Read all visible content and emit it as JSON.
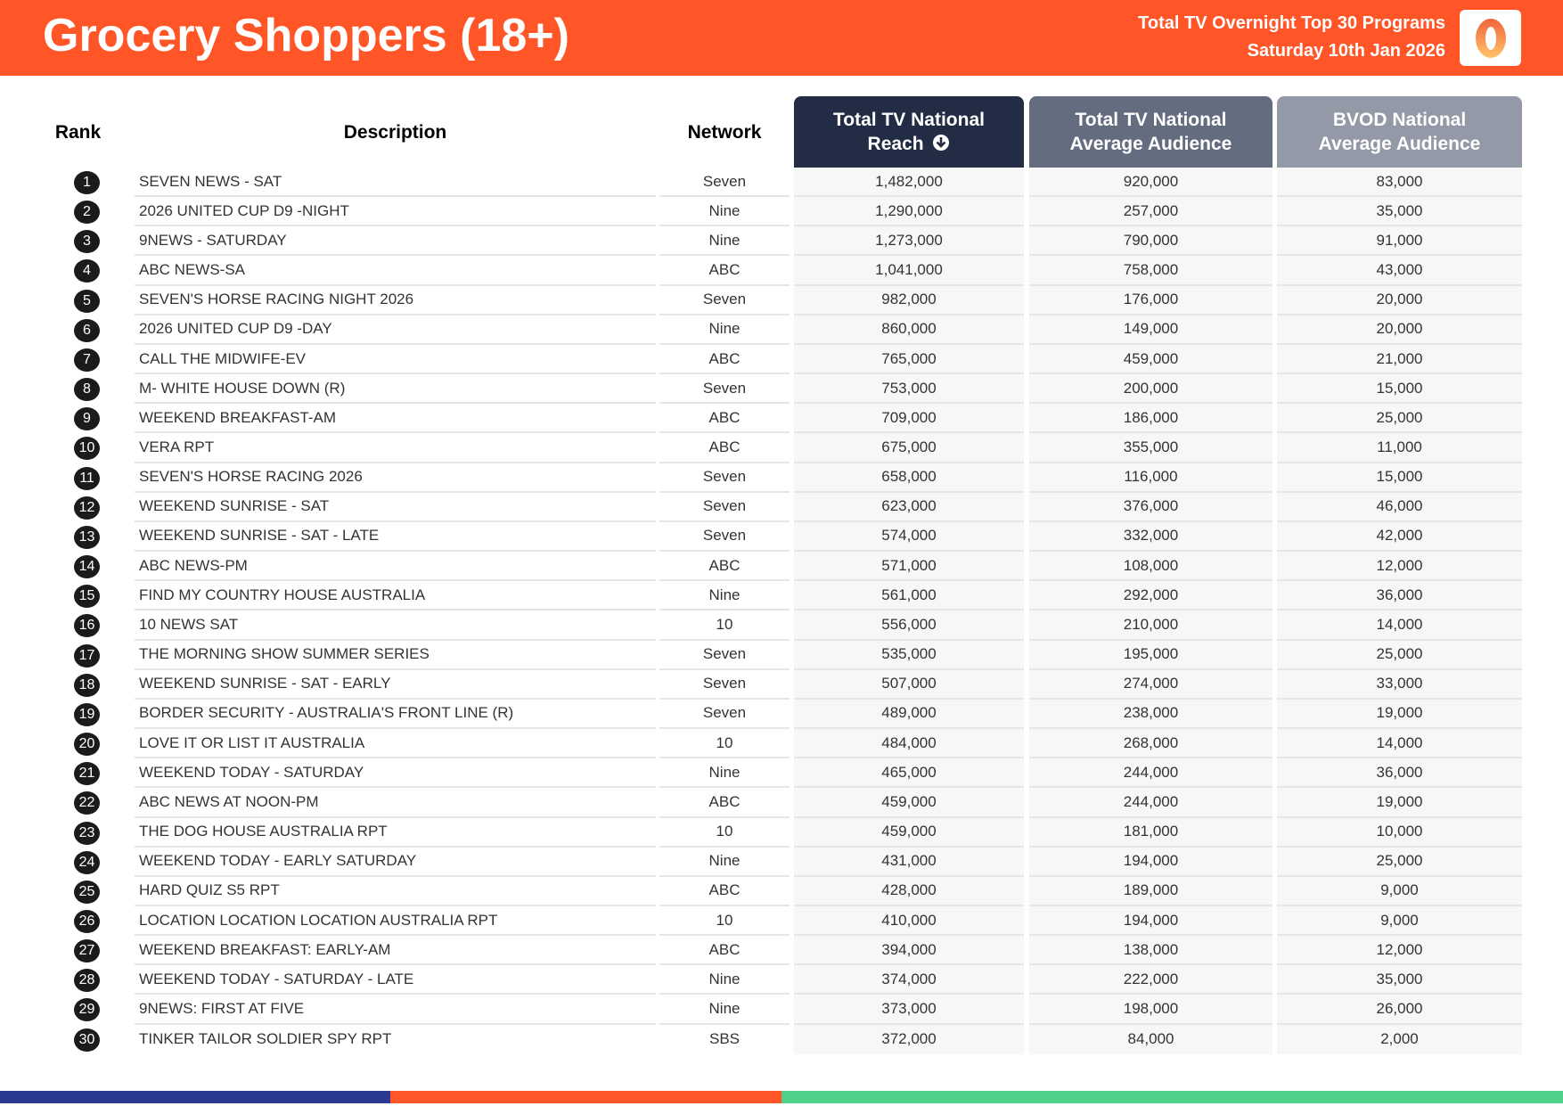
{
  "header": {
    "title": "Grocery Shoppers (18+)",
    "subtitle": "Total TV Overnight Top 30 Programs",
    "date": "Saturday 10th Jan 2026",
    "logo_text": "0"
  },
  "columns": {
    "rank": "Rank",
    "description": "Description",
    "network": "Network",
    "reach_line1": "Total TV National",
    "reach_line2": "Reach",
    "avg_line1": "Total TV National",
    "avg_line2": "Average Audience",
    "bvod_line1": "BVOD National",
    "bvod_line2": "Average Audience",
    "sort_icon": "arrow-down-circle-icon"
  },
  "colors": {
    "header": "#ff5527",
    "reach_header": "#222d45",
    "avg_header": "#646d80",
    "bvod_header": "#9399a6",
    "bar_blue": "#2b3990",
    "bar_orange": "#ff5527",
    "bar_green": "#4fd18b"
  },
  "rows": [
    {
      "rank": "1",
      "description": "SEVEN NEWS - SAT",
      "network": "Seven",
      "reach": "1,482,000",
      "avg": "920,000",
      "bvod": "83,000"
    },
    {
      "rank": "2",
      "description": "2026 UNITED CUP D9 -NIGHT",
      "network": "Nine",
      "reach": "1,290,000",
      "avg": "257,000",
      "bvod": "35,000"
    },
    {
      "rank": "3",
      "description": "9NEWS - SATURDAY",
      "network": "Nine",
      "reach": "1,273,000",
      "avg": "790,000",
      "bvod": "91,000"
    },
    {
      "rank": "4",
      "description": "ABC NEWS-SA",
      "network": "ABC",
      "reach": "1,041,000",
      "avg": "758,000",
      "bvod": "43,000"
    },
    {
      "rank": "5",
      "description": "SEVEN'S HORSE RACING NIGHT 2026",
      "network": "Seven",
      "reach": "982,000",
      "avg": "176,000",
      "bvod": "20,000"
    },
    {
      "rank": "6",
      "description": "2026 UNITED CUP D9 -DAY",
      "network": "Nine",
      "reach": "860,000",
      "avg": "149,000",
      "bvod": "20,000"
    },
    {
      "rank": "7",
      "description": "CALL THE MIDWIFE-EV",
      "network": "ABC",
      "reach": "765,000",
      "avg": "459,000",
      "bvod": "21,000"
    },
    {
      "rank": "8",
      "description": "M- WHITE HOUSE DOWN (R)",
      "network": "Seven",
      "reach": "753,000",
      "avg": "200,000",
      "bvod": "15,000"
    },
    {
      "rank": "9",
      "description": "WEEKEND BREAKFAST-AM",
      "network": "ABC",
      "reach": "709,000",
      "avg": "186,000",
      "bvod": "25,000"
    },
    {
      "rank": "10",
      "description": "VERA RPT",
      "network": "ABC",
      "reach": "675,000",
      "avg": "355,000",
      "bvod": "11,000"
    },
    {
      "rank": "11",
      "description": "SEVEN'S HORSE RACING 2026",
      "network": "Seven",
      "reach": "658,000",
      "avg": "116,000",
      "bvod": "15,000"
    },
    {
      "rank": "12",
      "description": "WEEKEND SUNRISE - SAT",
      "network": "Seven",
      "reach": "623,000",
      "avg": "376,000",
      "bvod": "46,000"
    },
    {
      "rank": "13",
      "description": "WEEKEND SUNRISE - SAT - LATE",
      "network": "Seven",
      "reach": "574,000",
      "avg": "332,000",
      "bvod": "42,000"
    },
    {
      "rank": "14",
      "description": "ABC NEWS-PM",
      "network": "ABC",
      "reach": "571,000",
      "avg": "108,000",
      "bvod": "12,000"
    },
    {
      "rank": "15",
      "description": "FIND MY COUNTRY HOUSE AUSTRALIA",
      "network": "Nine",
      "reach": "561,000",
      "avg": "292,000",
      "bvod": "36,000"
    },
    {
      "rank": "16",
      "description": "10 NEWS SAT",
      "network": "10",
      "reach": "556,000",
      "avg": "210,000",
      "bvod": "14,000"
    },
    {
      "rank": "17",
      "description": "THE MORNING SHOW SUMMER SERIES",
      "network": "Seven",
      "reach": "535,000",
      "avg": "195,000",
      "bvod": "25,000"
    },
    {
      "rank": "18",
      "description": "WEEKEND SUNRISE - SAT - EARLY",
      "network": "Seven",
      "reach": "507,000",
      "avg": "274,000",
      "bvod": "33,000"
    },
    {
      "rank": "19",
      "description": "BORDER SECURITY - AUSTRALIA'S FRONT LINE (R)",
      "network": "Seven",
      "reach": "489,000",
      "avg": "238,000",
      "bvod": "19,000"
    },
    {
      "rank": "20",
      "description": "LOVE IT OR LIST IT AUSTRALIA",
      "network": "10",
      "reach": "484,000",
      "avg": "268,000",
      "bvod": "14,000"
    },
    {
      "rank": "21",
      "description": "WEEKEND TODAY - SATURDAY",
      "network": "Nine",
      "reach": "465,000",
      "avg": "244,000",
      "bvod": "36,000"
    },
    {
      "rank": "22",
      "description": "ABC NEWS AT NOON-PM",
      "network": "ABC",
      "reach": "459,000",
      "avg": "244,000",
      "bvod": "19,000"
    },
    {
      "rank": "23",
      "description": "THE DOG HOUSE AUSTRALIA RPT",
      "network": "10",
      "reach": "459,000",
      "avg": "181,000",
      "bvod": "10,000"
    },
    {
      "rank": "24",
      "description": "WEEKEND TODAY - EARLY SATURDAY",
      "network": "Nine",
      "reach": "431,000",
      "avg": "194,000",
      "bvod": "25,000"
    },
    {
      "rank": "25",
      "description": "HARD QUIZ S5 RPT",
      "network": "ABC",
      "reach": "428,000",
      "avg": "189,000",
      "bvod": "9,000"
    },
    {
      "rank": "26",
      "description": "LOCATION LOCATION LOCATION AUSTRALIA RPT",
      "network": "10",
      "reach": "410,000",
      "avg": "194,000",
      "bvod": "9,000"
    },
    {
      "rank": "27",
      "description": "WEEKEND BREAKFAST: EARLY-AM",
      "network": "ABC",
      "reach": "394,000",
      "avg": "138,000",
      "bvod": "12,000"
    },
    {
      "rank": "28",
      "description": "WEEKEND TODAY - SATURDAY - LATE",
      "network": "Nine",
      "reach": "374,000",
      "avg": "222,000",
      "bvod": "35,000"
    },
    {
      "rank": "29",
      "description": "9NEWS: FIRST AT FIVE",
      "network": "Nine",
      "reach": "373,000",
      "avg": "198,000",
      "bvod": "26,000"
    },
    {
      "rank": "30",
      "description": "TINKER TAILOR SOLDIER SPY RPT",
      "network": "SBS",
      "reach": "372,000",
      "avg": "84,000",
      "bvod": "2,000"
    }
  ]
}
